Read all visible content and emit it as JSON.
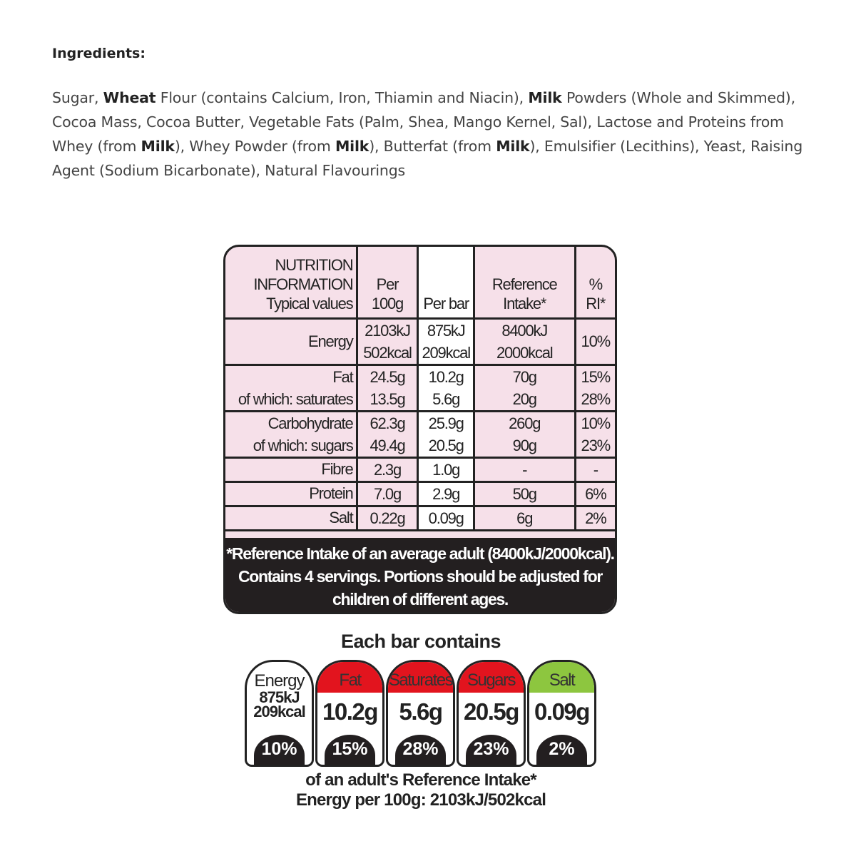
{
  "ingredients": {
    "title": "Ingredients:",
    "parts": [
      {
        "t": "Sugar, ",
        "b": false
      },
      {
        "t": "Wheat",
        "b": true
      },
      {
        "t": " Flour (contains Calcium, Iron, Thiamin and Niacin), ",
        "b": false
      },
      {
        "t": "Milk",
        "b": true
      },
      {
        "t": " Powders (Whole and Skimmed), Cocoa Mass, Cocoa Butter, Vegetable Fats (Palm, Shea, Mango Kernel, Sal), Lactose and Proteins from Whey (from ",
        "b": false
      },
      {
        "t": "Milk",
        "b": true
      },
      {
        "t": "), Whey Powder (from ",
        "b": false
      },
      {
        "t": "Milk",
        "b": true
      },
      {
        "t": "), Butterfat (from ",
        "b": false
      },
      {
        "t": "Milk",
        "b": true
      },
      {
        "t": "), Emulsifier (Lecithins), Yeast, Raising Agent (Sodium Bicarbonate), Natural Flavourings",
        "b": false
      }
    ]
  },
  "nutrition": {
    "header": [
      "NUTRITION INFORMATION Typical values",
      "Per 100g",
      "Per bar",
      "Reference Intake*",
      "% RI*"
    ],
    "rows": [
      {
        "label": [
          "Energy"
        ],
        "per100": [
          "2103kJ",
          "502kcal"
        ],
        "perbar": [
          "875kJ",
          "209kcal"
        ],
        "ri": [
          "8400kJ",
          "2000kcal"
        ],
        "pct": [
          "10%"
        ]
      },
      {
        "label": [
          "Fat",
          "of which: saturates"
        ],
        "per100": [
          "24.5g",
          "13.5g"
        ],
        "perbar": [
          "10.2g",
          "5.6g"
        ],
        "ri": [
          "70g",
          "20g"
        ],
        "pct": [
          "15%",
          "28%"
        ]
      },
      {
        "label": [
          "Carbohydrate",
          "of which: sugars"
        ],
        "per100": [
          "62.3g",
          "49.4g"
        ],
        "perbar": [
          "25.9g",
          "20.5g"
        ],
        "ri": [
          "260g",
          "90g"
        ],
        "pct": [
          "10%",
          "23%"
        ]
      },
      {
        "label": [
          "Fibre"
        ],
        "per100": [
          "2.3g"
        ],
        "perbar": [
          "1.0g"
        ],
        "ri": [
          "-"
        ],
        "pct": [
          "-"
        ]
      },
      {
        "label": [
          "Protein"
        ],
        "per100": [
          "7.0g"
        ],
        "perbar": [
          "2.9g"
        ],
        "ri": [
          "50g"
        ],
        "pct": [
          "6%"
        ]
      },
      {
        "label": [
          "Salt"
        ],
        "per100": [
          "0.22g"
        ],
        "perbar": [
          "0.09g"
        ],
        "ri": [
          "6g"
        ],
        "pct": [
          "2%"
        ]
      }
    ],
    "footnote": [
      "*Reference Intake of an average adult (8400kJ/2000kcal).",
      "Contains 4 servings. Portions should be adjusted for",
      "children of different ages."
    ]
  },
  "gda": {
    "title": "Each bar contains",
    "items": [
      {
        "name": "Energy",
        "value": [
          "875kJ",
          "209kcal"
        ],
        "pct": "10%",
        "color": "#ffffff"
      },
      {
        "name": "Fat",
        "value": [
          "10.2g"
        ],
        "pct": "15%",
        "color": "#e2141e"
      },
      {
        "name": "Saturates",
        "value": [
          "5.6g"
        ],
        "pct": "28%",
        "color": "#e2141e"
      },
      {
        "name": "Sugars",
        "value": [
          "20.5g"
        ],
        "pct": "23%",
        "color": "#e2141e"
      },
      {
        "name": "Salt",
        "value": [
          "0.09g"
        ],
        "pct": "2%",
        "color": "#8dc63f"
      }
    ],
    "footer": [
      "of an adult's Reference Intake*",
      "Energy per 100g: 2103kJ/502kcal"
    ]
  }
}
